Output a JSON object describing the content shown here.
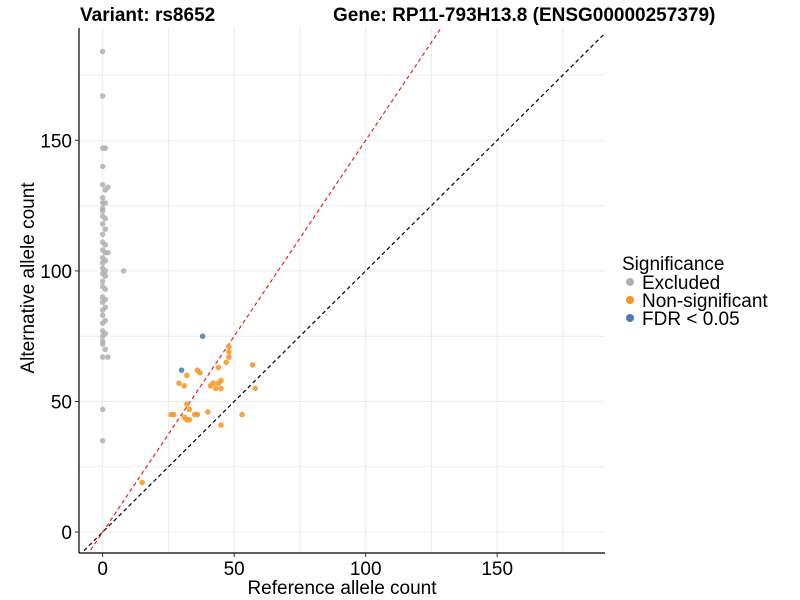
{
  "titles": {
    "variant": "Variant: rs8652",
    "gene": "Gene: RP11-793H13.8 (ENSG00000257379)"
  },
  "chart_data": {
    "type": "scatter",
    "xlabel": "Reference allele count",
    "ylabel": "Alternative allele count",
    "xlim": [
      -9,
      191
    ],
    "ylim": [
      -8,
      193
    ],
    "xticks": [
      0,
      50,
      100,
      150
    ],
    "yticks": [
      0,
      50,
      100,
      150
    ],
    "grid": true,
    "legend": {
      "title": "Significance",
      "placement": "right",
      "entries": [
        {
          "label": "Excluded",
          "color": "#b0b0b0"
        },
        {
          "label": "Non-significant",
          "color": "#f7941d"
        },
        {
          "label": "FDR < 0.05",
          "color": "#4a7ab5"
        }
      ]
    },
    "reference_lines": [
      {
        "description": "y = x",
        "slope": 1,
        "color": "#000000",
        "style": "dashed"
      },
      {
        "description": "y = 1.5x",
        "slope": 1.5,
        "color": "#e8231f",
        "style": "dashed"
      }
    ],
    "series": [
      {
        "name": "Excluded",
        "color": "#b0b0b0",
        "points": [
          [
            0,
            184
          ],
          [
            0,
            167
          ],
          [
            0,
            147
          ],
          [
            1,
            147
          ],
          [
            0,
            140
          ],
          [
            0,
            133
          ],
          [
            1,
            131
          ],
          [
            2,
            132
          ],
          [
            0,
            128
          ],
          [
            0,
            126
          ],
          [
            1,
            126
          ],
          [
            0,
            124
          ],
          [
            0,
            123
          ],
          [
            0,
            121
          ],
          [
            1,
            120
          ],
          [
            0,
            118
          ],
          [
            1,
            116
          ],
          [
            0,
            114
          ],
          [
            0,
            111
          ],
          [
            1,
            110
          ],
          [
            0,
            108
          ],
          [
            1,
            107
          ],
          [
            2,
            107
          ],
          [
            0,
            105
          ],
          [
            1,
            104
          ],
          [
            0,
            103
          ],
          [
            0,
            101
          ],
          [
            1,
            100
          ],
          [
            0,
            99
          ],
          [
            1,
            98
          ],
          [
            8,
            100
          ],
          [
            0,
            96
          ],
          [
            0,
            94
          ],
          [
            1,
            93
          ],
          [
            0,
            90
          ],
          [
            1,
            89
          ],
          [
            0,
            88
          ],
          [
            1,
            86
          ],
          [
            0,
            85
          ],
          [
            0,
            83
          ],
          [
            1,
            81
          ],
          [
            0,
            80
          ],
          [
            0,
            77
          ],
          [
            1,
            76
          ],
          [
            0,
            75
          ],
          [
            0,
            73
          ],
          [
            0,
            72
          ],
          [
            1,
            70
          ],
          [
            0,
            67
          ],
          [
            2,
            67
          ],
          [
            0,
            47
          ],
          [
            0,
            35
          ]
        ]
      },
      {
        "name": "Non-significant",
        "color": "#f7941d",
        "points": [
          [
            15,
            19
          ],
          [
            26,
            45
          ],
          [
            27,
            45
          ],
          [
            29,
            57
          ],
          [
            31,
            56
          ],
          [
            31,
            44
          ],
          [
            32,
            49
          ],
          [
            32,
            43
          ],
          [
            33,
            43
          ],
          [
            32,
            60
          ],
          [
            33,
            47
          ],
          [
            35,
            45
          ],
          [
            36,
            45
          ],
          [
            37,
            61
          ],
          [
            36,
            62
          ],
          [
            40,
            46
          ],
          [
            41,
            56
          ],
          [
            42,
            57
          ],
          [
            43,
            55
          ],
          [
            44,
            57
          ],
          [
            44,
            63
          ],
          [
            45,
            41
          ],
          [
            45,
            55
          ],
          [
            45,
            58
          ],
          [
            47,
            65
          ],
          [
            48,
            67
          ],
          [
            48,
            71
          ],
          [
            48,
            69
          ],
          [
            53,
            45
          ],
          [
            57,
            64
          ],
          [
            58,
            55
          ]
        ]
      },
      {
        "name": "FDR < 0.05",
        "color": "#4a7ab5",
        "points": [
          [
            30,
            62
          ],
          [
            38,
            75
          ]
        ]
      }
    ]
  }
}
